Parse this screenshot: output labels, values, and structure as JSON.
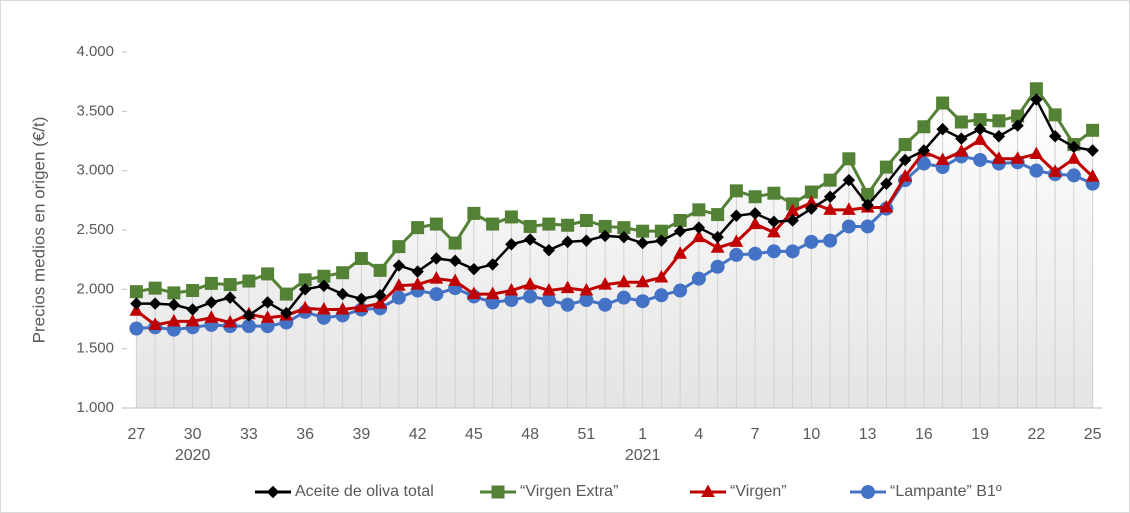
{
  "chart_data": {
    "type": "line",
    "y_label": "Precios medios  en origen (€/t)",
    "categories": [
      "27",
      null,
      null,
      "30",
      null,
      null,
      "33",
      null,
      null,
      "36",
      null,
      null,
      "39",
      null,
      null,
      "42",
      null,
      null,
      "45",
      null,
      null,
      "48",
      null,
      null,
      "51",
      null,
      null,
      "1",
      null,
      null,
      "4",
      null,
      null,
      "7",
      null,
      null,
      "10",
      null,
      null,
      "13",
      null,
      null,
      "16",
      null,
      null,
      "19",
      null,
      null,
      "22",
      null,
      null,
      "25"
    ],
    "year_labels": [
      "2020",
      "2021"
    ],
    "ylim": [
      1000,
      4000
    ],
    "yticks": [
      {
        "value": 1000,
        "label": "1.000"
      },
      {
        "value": 1500,
        "label": "1.500"
      },
      {
        "value": 2000,
        "label": "2.000"
      },
      {
        "value": 2500,
        "label": "2.500"
      },
      {
        "value": 3000,
        "label": "3.000"
      },
      {
        "value": 3500,
        "label": "3.500"
      },
      {
        "value": 4000,
        "label": "4.000"
      }
    ],
    "grid": false,
    "legend": "bottom",
    "series": [
      {
        "name": "Aceite de oliva total",
        "color": "#000000",
        "marker": "diamond",
        "values": [
          1880,
          1880,
          1870,
          1830,
          1890,
          1930,
          1780,
          1890,
          1800,
          2000,
          2030,
          1960,
          1920,
          1950,
          2200,
          2150,
          2260,
          2240,
          2170,
          2210,
          2380,
          2420,
          2330,
          2400,
          2410,
          2450,
          2440,
          2390,
          2410,
          2490,
          2520,
          2440,
          2620,
          2640,
          2570,
          2580,
          2680,
          2780,
          2920,
          2710,
          2890,
          3090,
          3170,
          3350,
          3270,
          3350,
          3290,
          3380,
          3600,
          3290,
          3200,
          3170
        ]
      },
      {
        "name": "“Virgen Extra”",
        "color": "#538135",
        "marker": "square",
        "values": [
          1980,
          2010,
          1970,
          1990,
          2050,
          2040,
          2070,
          2130,
          1960,
          2080,
          2110,
          2140,
          2260,
          2160,
          2360,
          2520,
          2550,
          2390,
          2640,
          2550,
          2610,
          2530,
          2550,
          2540,
          2580,
          2530,
          2520,
          2490,
          2490,
          2580,
          2670,
          2630,
          2830,
          2780,
          2810,
          2720,
          2820,
          2920,
          3100,
          2800,
          3030,
          3220,
          3370,
          3570,
          3410,
          3430,
          3420,
          3460,
          3690,
          3470,
          3220,
          3340
        ]
      },
      {
        "name": "“Virgen”",
        "color": "#c00000",
        "marker": "triangle",
        "values": [
          1820,
          1700,
          1730,
          1730,
          1760,
          1720,
          1790,
          1760,
          1780,
          1840,
          1830,
          1830,
          1850,
          1880,
          2030,
          2040,
          2090,
          2070,
          1960,
          1960,
          1990,
          2040,
          1990,
          2010,
          1990,
          2040,
          2060,
          2060,
          2100,
          2300,
          2440,
          2350,
          2400,
          2550,
          2480,
          2660,
          2730,
          2670,
          2670,
          2690,
          2690,
          2950,
          3160,
          3090,
          3160,
          3260,
          3100,
          3100,
          3140,
          2990,
          3100,
          2950
        ]
      },
      {
        "name": "“Lampante” B1º",
        "color": "#4472c4",
        "marker": "circle",
        "values": [
          1670,
          1680,
          1660,
          1680,
          1700,
          1690,
          1690,
          1690,
          1720,
          1810,
          1760,
          1780,
          1830,
          1840,
          1930,
          1990,
          1960,
          2010,
          1940,
          1890,
          1910,
          1940,
          1910,
          1870,
          1910,
          1870,
          1930,
          1900,
          1950,
          1990,
          2090,
          2190,
          2290,
          2300,
          2320,
          2320,
          2400,
          2410,
          2530,
          2530,
          2680,
          2920,
          3060,
          3030,
          3120,
          3090,
          3060,
          3070,
          3000,
          2970,
          2960,
          2890
        ]
      }
    ]
  }
}
